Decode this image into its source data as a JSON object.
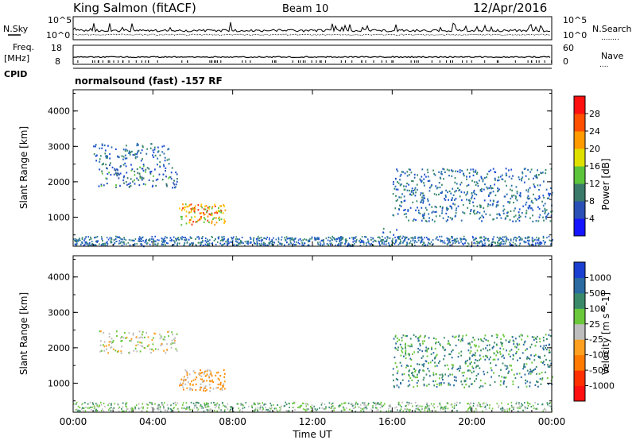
{
  "header": {
    "station": "King Salmon (fitACF)",
    "beam": "Beam 10",
    "date": "12/Apr/2016"
  },
  "left_labels": {
    "nsky": "N.Sky",
    "freq_line1": "Freq.",
    "freq_line2": "[MHz]",
    "cpid": "CPID"
  },
  "right_labels": {
    "nsearch": "N.Search",
    "nave": "Nave",
    "dots": "........",
    "dots_short": "...."
  },
  "noise_axis": {
    "top": "10^5",
    "bottom": "10^0"
  },
  "freq_axis": {
    "top": "18",
    "bottom": "8"
  },
  "nave_axis": {
    "top": "60",
    "bottom": "0"
  },
  "mode_text": "normalsound (fast) -157 RF",
  "chart_data": [
    {
      "type": "heatmap",
      "name": "power",
      "ylabel": "Slant Range [km]",
      "yticks": [
        "1000",
        "2000",
        "3000",
        "4000"
      ],
      "ylim": [
        180,
        4600
      ],
      "xlim": [
        0,
        24
      ],
      "colorbar_label": "Power [dB]",
      "colorbar_ticks": [
        "4",
        "8",
        "12",
        "16",
        "20",
        "24",
        "28"
      ],
      "colorbar_colors": [
        "#1414ff",
        "#2a4fb5",
        "#3a7a6a",
        "#5cc43a",
        "#e0e000",
        "#ff9a00",
        "#ff5000",
        "#ff1010"
      ],
      "scatter_colors": [
        "#1f4fd0",
        "#2a6fb0",
        "#3a8a6a"
      ],
      "core_colors": [
        "#ff9a00",
        "#ffd000",
        "#ff3000",
        "#5cc43a"
      ],
      "grid": false,
      "regions": [
        {
          "t0": 1.2,
          "t1": 5.2,
          "r0": 1850,
          "r1": 2500,
          "level": "mid"
        },
        {
          "t0": 5.3,
          "t1": 7.6,
          "r0": 800,
          "r1": 1400,
          "level": "high"
        },
        {
          "t0": 1.0,
          "t1": 4.8,
          "r0": 2500,
          "r1": 3100,
          "level": "low"
        },
        {
          "t0": 15.4,
          "t1": 16.4,
          "r0": 400,
          "r1": 700,
          "level": "low"
        },
        {
          "t0": 16.0,
          "t1": 24.0,
          "r0": 900,
          "r1": 2400,
          "level": "low"
        },
        {
          "t0": 0.0,
          "t1": 24.0,
          "r0": 200,
          "r1": 450,
          "level": "low"
        }
      ]
    },
    {
      "type": "heatmap",
      "name": "velocity",
      "ylabel": "Slant Range [km]",
      "yticks": [
        "1000",
        "2000",
        "3000",
        "4000"
      ],
      "ylim": [
        180,
        4600
      ],
      "xlim": [
        0,
        24
      ],
      "colorbar_label": "Velocity [m s^-1]",
      "colorbar_ticks": [
        "1000",
        "500",
        "100",
        "25",
        "-25",
        "-100",
        "-500",
        "-1000"
      ],
      "colorbar_colors": [
        "#1a3fd0",
        "#2a6aa0",
        "#3a8a6a",
        "#6ac83a",
        "#bdbdbd",
        "#ffa020",
        "#ff7a00",
        "#ff3000",
        "#ff1010"
      ],
      "scatter_colors": [
        "#bdbdbd",
        "#6ac83a",
        "#3a8a6a"
      ],
      "core_colors": [
        "#ff8a00",
        "#ffa020",
        "#bdbdbd"
      ],
      "grid": false,
      "regions": [
        {
          "t0": 1.2,
          "t1": 5.2,
          "r0": 1850,
          "r1": 2500,
          "level": "ground"
        },
        {
          "t0": 5.3,
          "t1": 7.6,
          "r0": 800,
          "r1": 1400,
          "level": "negative"
        },
        {
          "t0": 16.0,
          "t1": 24.0,
          "r0": 900,
          "r1": 2400,
          "level": "positive"
        }
      ]
    }
  ],
  "xaxis": {
    "ticks": [
      "00:00",
      "04:00",
      "08:00",
      "12:00",
      "16:00",
      "20:00",
      "00:00"
    ],
    "label": "Time UT"
  }
}
